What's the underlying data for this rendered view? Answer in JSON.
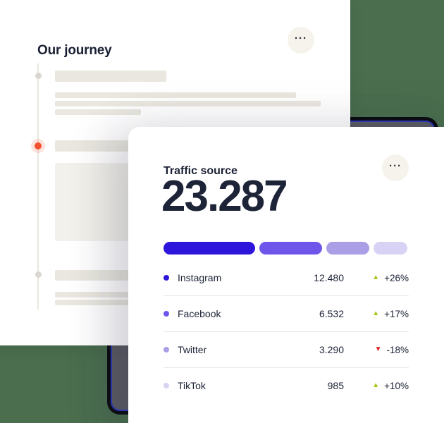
{
  "colors": {
    "background_green": "#4A6E4E",
    "dark_card_outer": "#0B0B12",
    "dark_card_ring": "#2E3BBE",
    "dark_card_inner": "#5C5C64",
    "card_bg": "#FFFFFF",
    "skeleton": "#E9E7DF",
    "skeleton_block": "#F2F1EB",
    "timeline_line": "#E8E6DE",
    "timeline_dot": "#D9D7CF",
    "timeline_dot_active": "#F1502F",
    "divider": "#EAE8E3",
    "text_dark": "#1B2134",
    "trend_up": "#A9C514",
    "trend_down": "#E0231E"
  },
  "journey_card": {
    "title": "Our journey",
    "menu_icon": "···"
  },
  "traffic_card": {
    "title": "Traffic source",
    "total": "23.287",
    "menu_icon": "···",
    "segments": [
      {
        "width_pct": 37.4,
        "color": "#2D15DB"
      },
      {
        "width_pct": 25.6,
        "color": "#6F55E9"
      },
      {
        "width_pct": 17.5,
        "color": "#AA9EE6"
      },
      {
        "width_pct": 13.8,
        "color": "#D8D2F4"
      }
    ],
    "rows": [
      {
        "label": "Instagram",
        "value": "12.480",
        "arrow": "▲",
        "change": "+26%",
        "trend": "up",
        "dot_color": "#2D15DB",
        "trend_color": "#A9C514"
      },
      {
        "label": "Facebook",
        "value": "6.532",
        "arrow": "▲",
        "change": "+17%",
        "trend": "up",
        "dot_color": "#6F55E9",
        "trend_color": "#A9C514"
      },
      {
        "label": "Twitter",
        "value": "3.290",
        "arrow": "▼",
        "change": "-18%",
        "trend": "down",
        "dot_color": "#AA9EE6",
        "trend_color": "#E0231E"
      },
      {
        "label": "TikTok",
        "value": "985",
        "arrow": "▲",
        "change": "+10%",
        "trend": "up",
        "dot_color": "#D8D2F4",
        "trend_color": "#A9C514"
      }
    ]
  }
}
